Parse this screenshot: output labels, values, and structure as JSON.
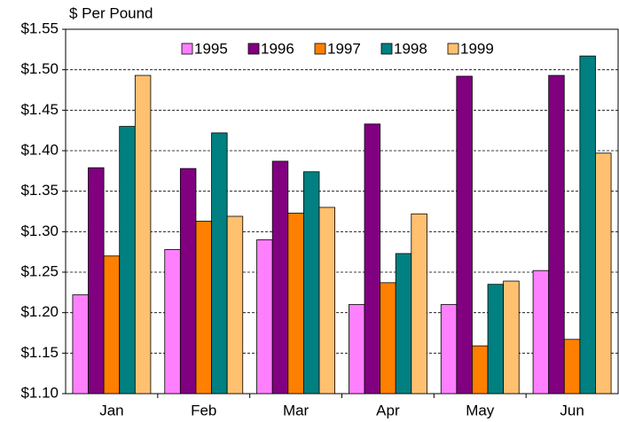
{
  "chart_data": {
    "type": "bar",
    "axis_label": "$ Per Pound",
    "categories": [
      "Jan",
      "Feb",
      "Mar",
      "Apr",
      "May",
      "Jun"
    ],
    "series": [
      {
        "name": "1995",
        "color": "#ff80ff",
        "values": [
          1.222,
          1.278,
          1.29,
          1.21,
          1.21,
          1.252
        ]
      },
      {
        "name": "1996",
        "color": "#800080",
        "values": [
          1.379,
          1.378,
          1.387,
          1.433,
          1.492,
          1.493
        ]
      },
      {
        "name": "1997",
        "color": "#ff8000",
        "values": [
          1.27,
          1.313,
          1.323,
          1.237,
          1.159,
          1.167
        ]
      },
      {
        "name": "1998",
        "color": "#008080",
        "values": [
          1.43,
          1.422,
          1.374,
          1.273,
          1.235,
          1.517
        ]
      },
      {
        "name": "1999",
        "color": "#ffc070",
        "values": [
          1.493,
          1.319,
          1.33,
          1.322,
          1.239,
          1.397
        ]
      }
    ],
    "ylim": [
      1.1,
      1.55
    ],
    "yticks": [
      {
        "value": 1.1,
        "label": "$1.10"
      },
      {
        "value": 1.15,
        "label": "$1.15"
      },
      {
        "value": 1.2,
        "label": "$1.20"
      },
      {
        "value": 1.25,
        "label": "$1.25"
      },
      {
        "value": 1.3,
        "label": "$1.30"
      },
      {
        "value": 1.35,
        "label": "$1.35"
      },
      {
        "value": 1.4,
        "label": "$1.40"
      },
      {
        "value": 1.45,
        "label": "$1.45"
      },
      {
        "value": 1.5,
        "label": "$1.50"
      },
      {
        "value": 1.55,
        "label": "$1.55"
      }
    ],
    "grid": true,
    "legend": "top"
  }
}
